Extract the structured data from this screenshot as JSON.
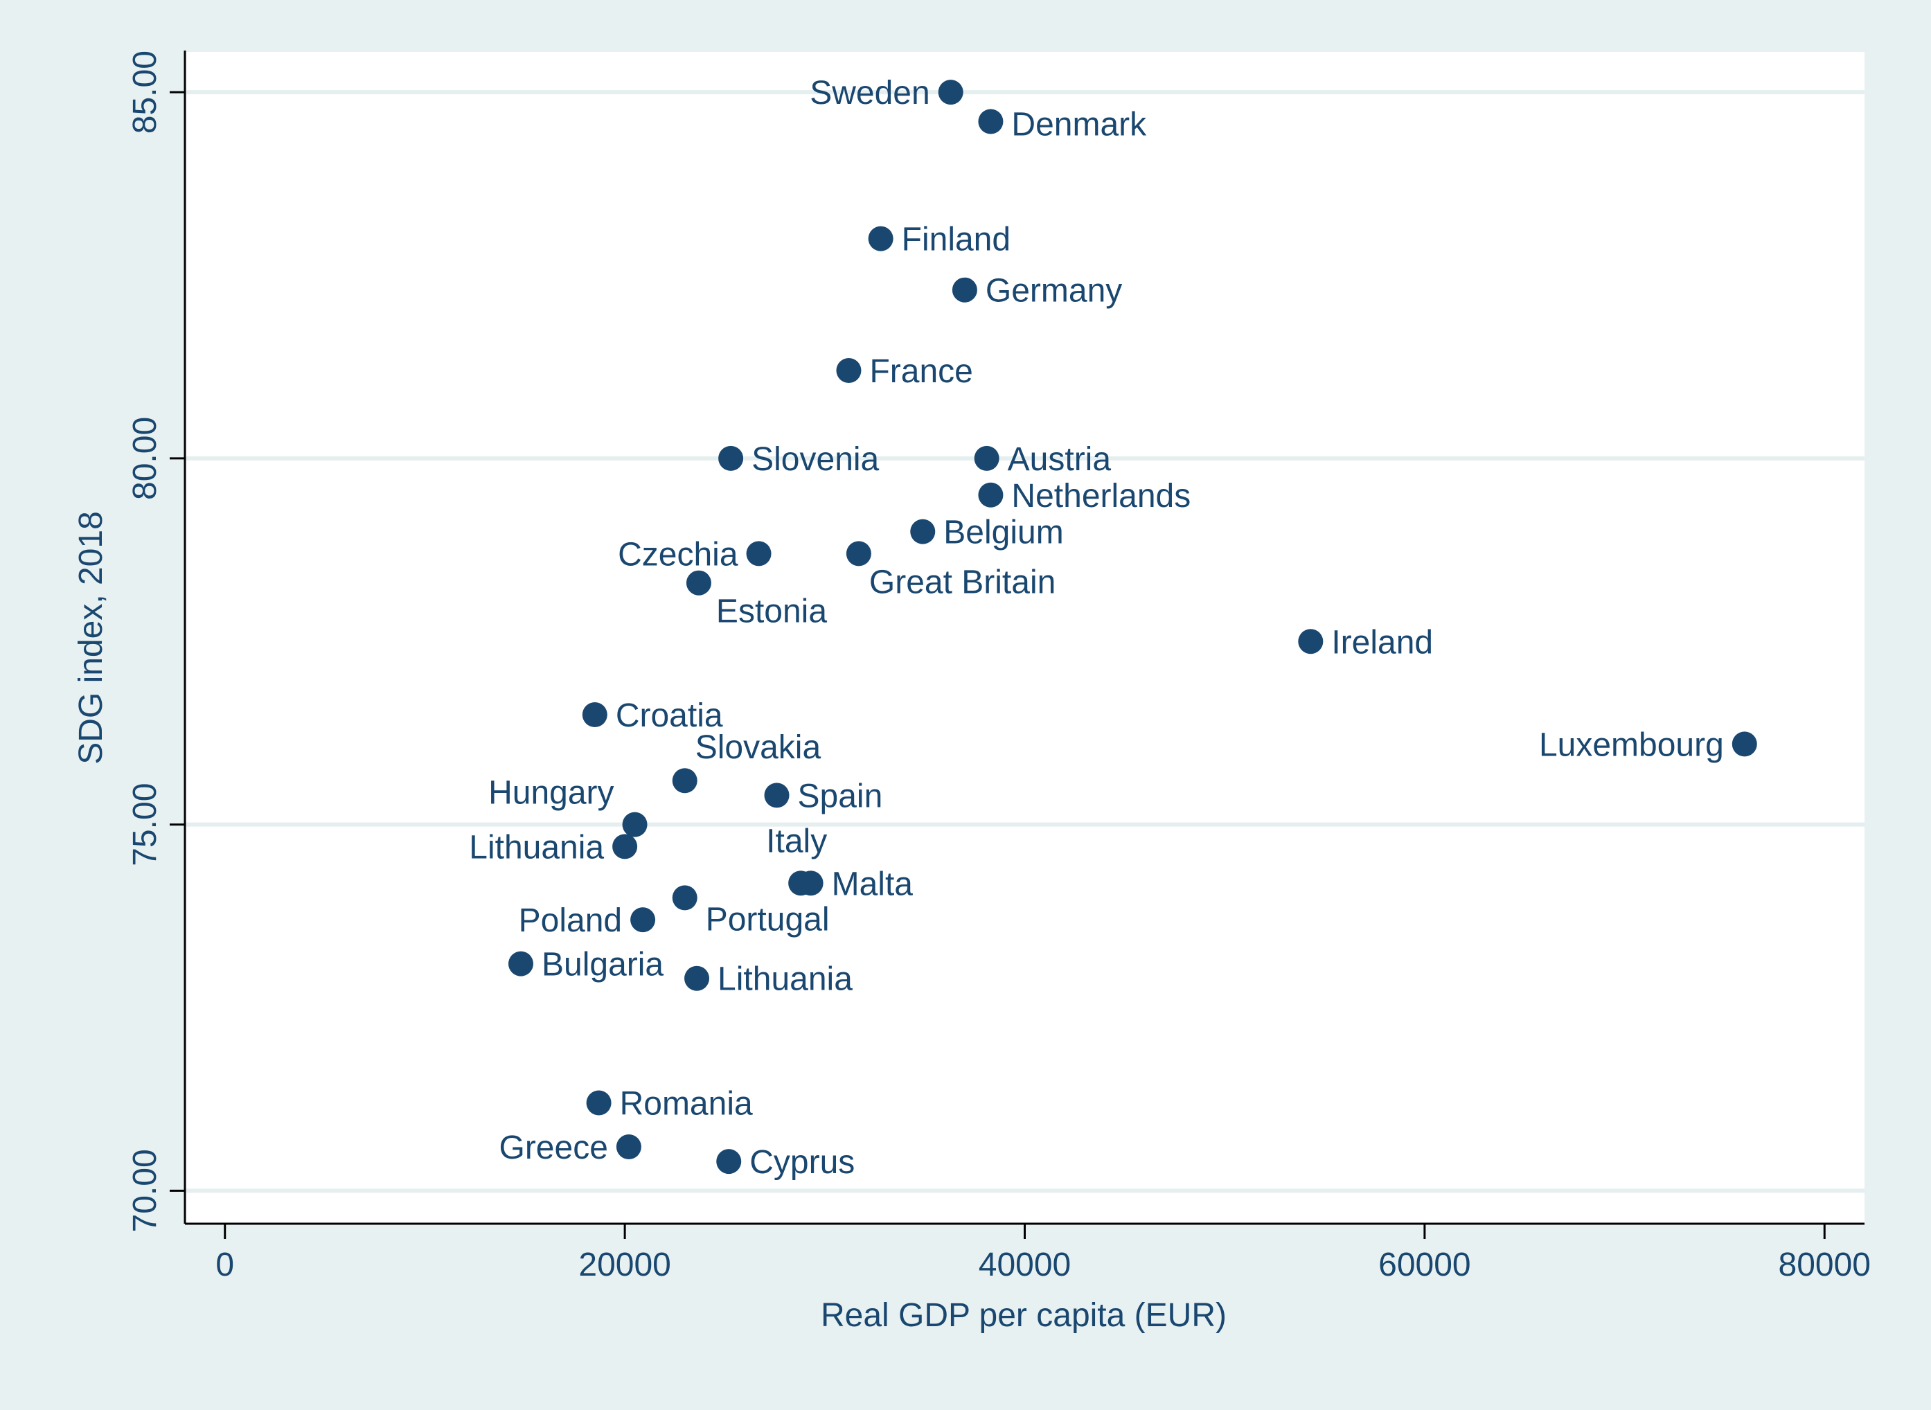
{
  "chart_data": {
    "type": "scatter",
    "title": "",
    "xlabel": "Real GDP per capita (EUR)",
    "ylabel": "SDG index, 2018",
    "xlim": [
      -2000,
      82000
    ],
    "ylim": [
      69.55,
      85.55
    ],
    "xticks": [
      0,
      20000,
      40000,
      60000,
      80000
    ],
    "xtick_labels": [
      "0",
      "20000",
      "40000",
      "60000",
      "80000"
    ],
    "yticks": [
      70,
      75,
      80,
      85
    ],
    "ytick_labels": [
      "70.00",
      "75.00",
      "80.00",
      "85.00"
    ],
    "grid": "horizontal",
    "colors": {
      "marker": "#1a476f",
      "outer_bg": "#e8f1f2",
      "plot_bg": "#ffffff",
      "grid": "#e6eff0",
      "axis": "#000000"
    },
    "points": [
      {
        "label": "Sweden",
        "x": 36300,
        "y": 85.0,
        "pos": "left"
      },
      {
        "label": "Denmark",
        "x": 38300,
        "y": 84.6,
        "pos": "right-below"
      },
      {
        "label": "Finland",
        "x": 32800,
        "y": 83.0,
        "pos": "right"
      },
      {
        "label": "Germany",
        "x": 37000,
        "y": 82.3,
        "pos": "right"
      },
      {
        "label": "France",
        "x": 31200,
        "y": 81.2,
        "pos": "right"
      },
      {
        "label": "Slovenia",
        "x": 25300,
        "y": 80.0,
        "pos": "right"
      },
      {
        "label": "Austria",
        "x": 38100,
        "y": 80.0,
        "pos": "right"
      },
      {
        "label": "Netherlands",
        "x": 38300,
        "y": 79.5,
        "pos": "right"
      },
      {
        "label": "Belgium",
        "x": 34900,
        "y": 79.0,
        "pos": "right"
      },
      {
        "label": "Czechia",
        "x": 26700,
        "y": 78.7,
        "pos": "left"
      },
      {
        "label": "Great Britain",
        "x": 31700,
        "y": 78.7,
        "pos": "below"
      },
      {
        "label": "Estonia",
        "x": 23700,
        "y": 78.3,
        "pos": "below"
      },
      {
        "label": "Ireland",
        "x": 54300,
        "y": 77.5,
        "pos": "right"
      },
      {
        "label": "Croatia",
        "x": 18500,
        "y": 76.5,
        "pos": "right"
      },
      {
        "label": "Luxembourg",
        "x": 76000,
        "y": 76.1,
        "pos": "left"
      },
      {
        "label": "Slovakia",
        "x": 23000,
        "y": 75.6,
        "pos": "above"
      },
      {
        "label": "Spain",
        "x": 27600,
        "y": 75.4,
        "pos": "right"
      },
      {
        "label": "Hungary",
        "x": 20500,
        "y": 75.0,
        "pos": "left-above"
      },
      {
        "label": "Lithuania",
        "x": 20000,
        "y": 74.7,
        "pos": "left"
      },
      {
        "label": "Italy",
        "x": 28800,
        "y": 74.2,
        "pos": "above"
      },
      {
        "label": "Malta",
        "x": 29300,
        "y": 74.2,
        "pos": "right"
      },
      {
        "label": "Portugal",
        "x": 23000,
        "y": 74.0,
        "pos": "below"
      },
      {
        "label": "Poland",
        "x": 20900,
        "y": 73.7,
        "pos": "left"
      },
      {
        "label": "Bulgaria",
        "x": 14800,
        "y": 73.1,
        "pos": "right"
      },
      {
        "label": "Lithuania",
        "x": 23600,
        "y": 72.9,
        "pos": "right"
      },
      {
        "label": "Romania",
        "x": 18700,
        "y": 71.2,
        "pos": "right"
      },
      {
        "label": "Greece",
        "x": 20200,
        "y": 70.6,
        "pos": "left"
      },
      {
        "label": "Cyprus",
        "x": 25200,
        "y": 70.4,
        "pos": "right"
      }
    ]
  }
}
